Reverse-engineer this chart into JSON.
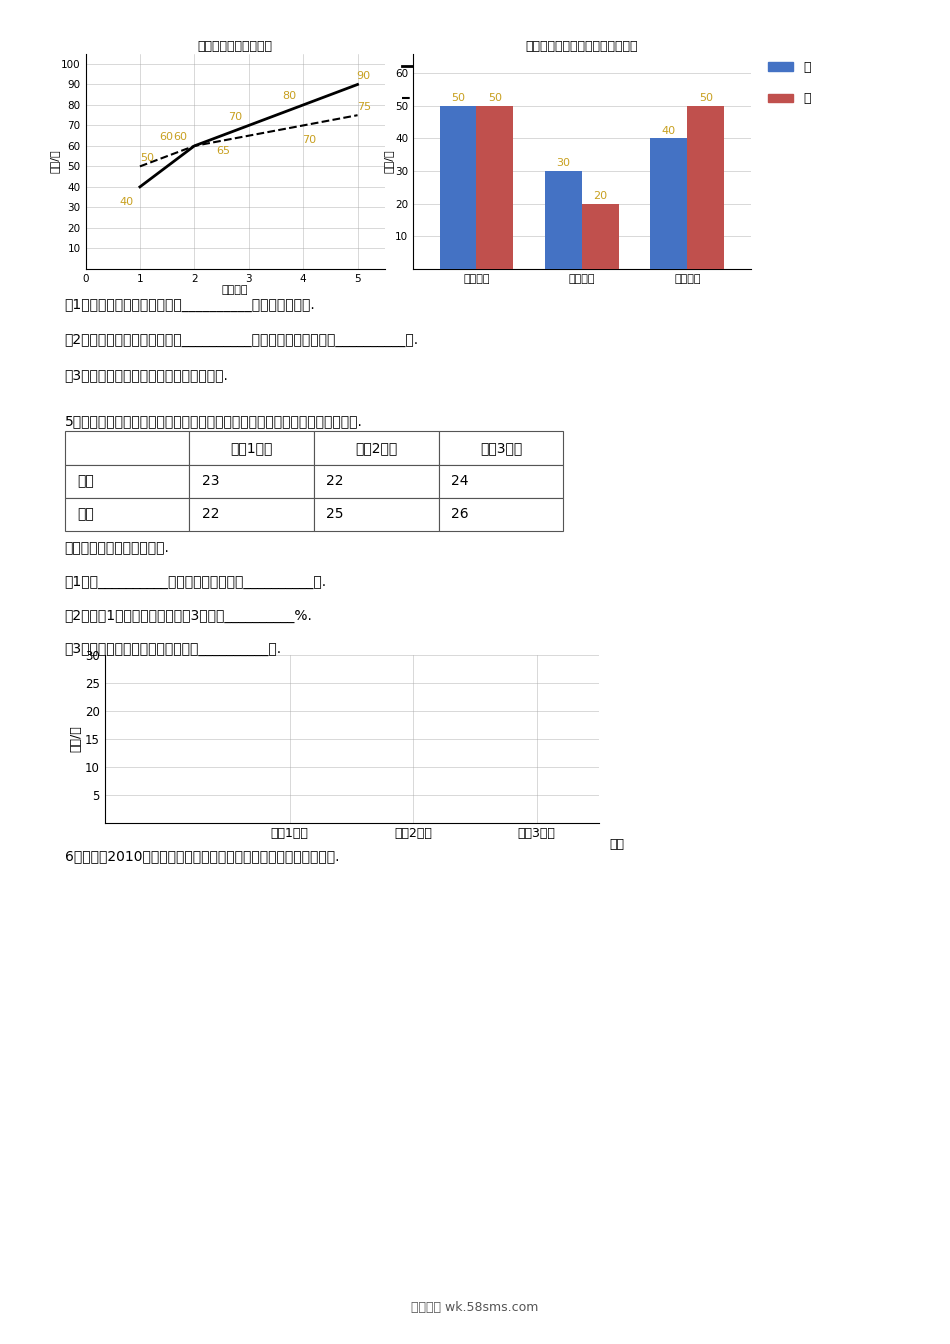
{
  "page_bg": "#ffffff",
  "line_chart_title": "甲、乙自测成绩统计图",
  "line_chart_ylabel": "分数/分",
  "line_chart_xlabel": "自动次序",
  "line_chart_jia_x": [
    1,
    2,
    3,
    4,
    5
  ],
  "line_chart_jia_y": [
    40,
    60,
    70,
    80,
    90
  ],
  "line_chart_yi_x": [
    1,
    2,
    3,
    4,
    5
  ],
  "line_chart_yi_y": [
    50,
    60,
    65,
    70,
    75
  ],
  "line_chart_jia_labels": [
    "40",
    "60",
    "70",
    "80",
    "90"
  ],
  "line_chart_yi_labels": [
    "50",
    "60",
    "65",
    "70",
    "75"
  ],
  "line_chart_yticks": [
    10,
    20,
    30,
    40,
    50,
    60,
    70,
    80,
    90,
    100
  ],
  "bar_chart_title": "甲、乙在家学习的时间分配统计图",
  "bar_chart_ylabel": "时间/分",
  "bar_categories": [
    "看书时间",
    "思考时间",
    "做题时间"
  ],
  "bar_jia": [
    50,
    30,
    40
  ],
  "bar_yi": [
    50,
    20,
    50
  ],
  "bar_jia_color": "#4472c4",
  "bar_yi_color": "#c0504d",
  "bar_yticks": [
    10,
    20,
    30,
    40,
    50,
    60
  ],
  "q1_text": "（1）从折线统计图中可以看出__________的成绩提高得快.",
  "q2_text": "（2）从条形统计图中可以看出__________思考的时间多一些，多__________分.",
  "q3_text": "（3）请你算出甲最后三次自测的平均成绩.",
  "q5_intro": "5．下表是新华小学六年级各班人数的统计表，请根据表中数据画出条形统计图.",
  "table_col0": "",
  "table_col1": "六（1）班",
  "table_col2": "六（2）班",
  "table_col3": "六（3）班",
  "table_r1c0": "男生",
  "table_r1c1": "23",
  "table_r1c2": "22",
  "table_r1c3": "24",
  "table_r2c0": "女生",
  "table_r2c1": "22",
  "table_r2c2": "25",
  "table_r2c3": "26",
  "chart2_note": "根据数据画统计图回答问题.",
  "chart2_q1": "（1）六__________班的人数最多，共有__________人.",
  "chart2_q2": "（2）六（1）班人数相当于六（3）班的__________%.",
  "chart2_q3": "（3）全年级平均每个班大约有学生__________人.",
  "chart2_ylabel": "单位/人",
  "chart2_yticks": [
    5,
    10,
    15,
    20,
    25,
    30
  ],
  "chart2_ylim": [
    0,
    30
  ],
  "chart2_xlabel": "班级",
  "chart2_xticks": [
    "六（1）班",
    "六（2）班",
    "六（3）班"
  ],
  "q6_text": "6．下面是2010年上半年某汽车交易市场销售轿车和货车情况统计图.",
  "footer": "五八文库 wk.58sms.com",
  "label_color": "#c8a020"
}
